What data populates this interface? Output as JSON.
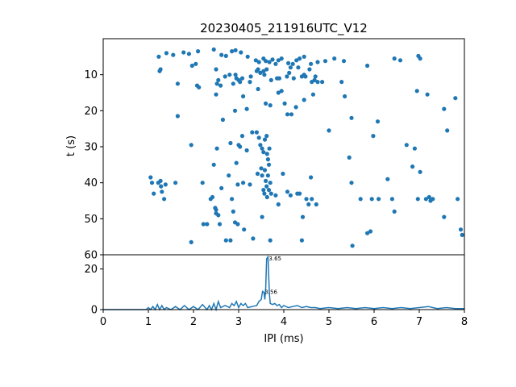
{
  "chart_data": [
    {
      "type": "scatter",
      "title": "20230405_211916UTC_V12",
      "xlabel": "",
      "ylabel": "t (s)",
      "xlim": [
        0,
        8
      ],
      "ylim": [
        60,
        0
      ],
      "y_inverted": true,
      "y_ticks": [
        "10",
        "20",
        "30",
        "40",
        "50",
        "60"
      ],
      "color": "#1f77b4",
      "points": [
        [
          1.23,
          5
        ],
        [
          1.4,
          4
        ],
        [
          1.55,
          4.5
        ],
        [
          1.78,
          3.8
        ],
        [
          1.9,
          4.2
        ],
        [
          2.1,
          3.5
        ],
        [
          2.45,
          3
        ],
        [
          2.62,
          4.5
        ],
        [
          2.72,
          4.8
        ],
        [
          2.85,
          3.5
        ],
        [
          2.93,
          3.2
        ],
        [
          3.05,
          3.8
        ],
        [
          3.2,
          5
        ],
        [
          3.38,
          6
        ],
        [
          3.45,
          6.5
        ],
        [
          3.55,
          5.5
        ],
        [
          3.6,
          6.2
        ],
        [
          3.68,
          6.5
        ],
        [
          3.75,
          5.8
        ],
        [
          3.82,
          7
        ],
        [
          3.88,
          6
        ],
        [
          3.95,
          5.5
        ],
        [
          4.1,
          6.8
        ],
        [
          4.2,
          7
        ],
        [
          4.28,
          6
        ],
        [
          4.35,
          5.5
        ],
        [
          4.45,
          5
        ],
        [
          4.6,
          7
        ],
        [
          4.75,
          6.5
        ],
        [
          4.92,
          6.2
        ],
        [
          5.12,
          5.5
        ],
        [
          5.33,
          6.2
        ],
        [
          5.85,
          7.5
        ],
        [
          6.45,
          5.5
        ],
        [
          6.58,
          6
        ],
        [
          6.98,
          4.8
        ],
        [
          7.02,
          5.5
        ],
        [
          1.25,
          9
        ],
        [
          1.27,
          8.5
        ],
        [
          1.65,
          12.5
        ],
        [
          1.97,
          7.5
        ],
        [
          2.05,
          7
        ],
        [
          2.08,
          13
        ],
        [
          2.12,
          13.5
        ],
        [
          2.5,
          8.5
        ],
        [
          2.52,
          12.5
        ],
        [
          2.55,
          11.5
        ],
        [
          2.6,
          13
        ],
        [
          2.7,
          10.5
        ],
        [
          2.8,
          10
        ],
        [
          2.88,
          12.5
        ],
        [
          2.93,
          10
        ],
        [
          2.95,
          11
        ],
        [
          3.0,
          11.5
        ],
        [
          3.03,
          12
        ],
        [
          3.08,
          11
        ],
        [
          3.25,
          12
        ],
        [
          3.27,
          10.5
        ],
        [
          3.4,
          9
        ],
        [
          3.43,
          8.5
        ],
        [
          3.48,
          9.5
        ],
        [
          3.55,
          9
        ],
        [
          3.57,
          10
        ],
        [
          3.62,
          8.5
        ],
        [
          3.72,
          11.5
        ],
        [
          3.85,
          11
        ],
        [
          3.9,
          11
        ],
        [
          4.07,
          10.5
        ],
        [
          4.12,
          9.5
        ],
        [
          4.15,
          8
        ],
        [
          4.22,
          11
        ],
        [
          4.32,
          8
        ],
        [
          4.4,
          10.5
        ],
        [
          4.45,
          10
        ],
        [
          4.48,
          10.5
        ],
        [
          4.57,
          8.5
        ],
        [
          4.62,
          12
        ],
        [
          4.68,
          11.5
        ],
        [
          4.7,
          10.5
        ],
        [
          4.75,
          12
        ],
        [
          4.85,
          12
        ],
        [
          5.28,
          12
        ],
        [
          1.65,
          21.5
        ],
        [
          2.5,
          15.5
        ],
        [
          2.65,
          22.5
        ],
        [
          2.92,
          20
        ],
        [
          3.1,
          16
        ],
        [
          3.18,
          19.5
        ],
        [
          3.43,
          14
        ],
        [
          3.6,
          18
        ],
        [
          3.7,
          18.5
        ],
        [
          3.88,
          15
        ],
        [
          3.95,
          14.5
        ],
        [
          4.02,
          18
        ],
        [
          4.08,
          21
        ],
        [
          4.17,
          21
        ],
        [
          4.27,
          19
        ],
        [
          4.45,
          17
        ],
        [
          4.65,
          15.5
        ],
        [
          5.35,
          16
        ],
        [
          5.5,
          22
        ],
        [
          6.08,
          23
        ],
        [
          6.95,
          14.5
        ],
        [
          7.18,
          15.5
        ],
        [
          7.55,
          19.5
        ],
        [
          7.8,
          16.5
        ],
        [
          1.95,
          29.5
        ],
        [
          2.45,
          35
        ],
        [
          2.52,
          30.5
        ],
        [
          2.82,
          29
        ],
        [
          3.0,
          29.5
        ],
        [
          3.03,
          30
        ],
        [
          3.08,
          27
        ],
        [
          3.18,
          31
        ],
        [
          3.3,
          26
        ],
        [
          3.4,
          26
        ],
        [
          3.45,
          27.5
        ],
        [
          3.48,
          29.5
        ],
        [
          3.52,
          30.5
        ],
        [
          3.55,
          31.5
        ],
        [
          3.58,
          28
        ],
        [
          3.62,
          27
        ],
        [
          3.63,
          32
        ],
        [
          3.65,
          33.5
        ],
        [
          3.67,
          35
        ],
        [
          3.68,
          30.5
        ],
        [
          4.6,
          38.5
        ],
        [
          5.0,
          25.5
        ],
        [
          5.45,
          33
        ],
        [
          5.98,
          27
        ],
        [
          6.72,
          29.5
        ],
        [
          6.9,
          30.5
        ],
        [
          7.62,
          25.5
        ],
        [
          1.05,
          38.5
        ],
        [
          1.08,
          40
        ],
        [
          1.12,
          43
        ],
        [
          1.22,
          40
        ],
        [
          1.27,
          39.5
        ],
        [
          1.28,
          41
        ],
        [
          1.3,
          42.5
        ],
        [
          1.35,
          44.5
        ],
        [
          1.38,
          40.5
        ],
        [
          1.6,
          40
        ],
        [
          2.2,
          40
        ],
        [
          2.38,
          44.5
        ],
        [
          2.42,
          44
        ],
        [
          2.48,
          47
        ],
        [
          2.5,
          48.5
        ],
        [
          2.55,
          49
        ],
        [
          2.62,
          41.5
        ],
        [
          2.78,
          38
        ],
        [
          2.85,
          44.5
        ],
        [
          2.95,
          34.5
        ],
        [
          2.98,
          40.5
        ],
        [
          3.1,
          40
        ],
        [
          3.25,
          40.5
        ],
        [
          3.42,
          37.5
        ],
        [
          3.5,
          36
        ],
        [
          3.52,
          38
        ],
        [
          3.55,
          42
        ],
        [
          3.57,
          43
        ],
        [
          3.58,
          36.5
        ],
        [
          3.6,
          39.5
        ],
        [
          3.62,
          41
        ],
        [
          3.63,
          44
        ],
        [
          3.65,
          38
        ],
        [
          3.67,
          42
        ],
        [
          3.7,
          40
        ],
        [
          3.72,
          43
        ],
        [
          3.82,
          43.5
        ],
        [
          3.88,
          46
        ],
        [
          3.98,
          37.5
        ],
        [
          4.08,
          42.5
        ],
        [
          4.15,
          43.5
        ],
        [
          4.3,
          43
        ],
        [
          4.35,
          43
        ],
        [
          4.42,
          49.5
        ],
        [
          4.5,
          44.5
        ],
        [
          4.55,
          46
        ],
        [
          4.62,
          44.5
        ],
        [
          4.72,
          46
        ],
        [
          5.5,
          40
        ],
        [
          5.7,
          44.5
        ],
        [
          5.95,
          44.5
        ],
        [
          6.1,
          44.5
        ],
        [
          6.3,
          39
        ],
        [
          6.4,
          44.5
        ],
        [
          6.45,
          48
        ],
        [
          6.85,
          35.5
        ],
        [
          6.97,
          44.5
        ],
        [
          7.02,
          37
        ],
        [
          7.15,
          44.5
        ],
        [
          7.22,
          44
        ],
        [
          7.25,
          45
        ],
        [
          7.3,
          44.5
        ],
        [
          7.85,
          44.5
        ],
        [
          1.95,
          56.5
        ],
        [
          2.22,
          51.5
        ],
        [
          2.3,
          51.5
        ],
        [
          2.5,
          47.5
        ],
        [
          2.58,
          51.5
        ],
        [
          2.72,
          56
        ],
        [
          2.82,
          56
        ],
        [
          2.88,
          48
        ],
        [
          2.92,
          51
        ],
        [
          2.98,
          51.5
        ],
        [
          3.12,
          53
        ],
        [
          3.32,
          55.5
        ],
        [
          3.52,
          49.5
        ],
        [
          3.7,
          56
        ],
        [
          4.4,
          56
        ],
        [
          5.52,
          57.5
        ],
        [
          5.85,
          54
        ],
        [
          5.92,
          53.5
        ],
        [
          7.55,
          49.5
        ],
        [
          7.92,
          53
        ],
        [
          7.95,
          54.5
        ]
      ]
    },
    {
      "type": "line",
      "xlabel": "IPI (ms)",
      "ylabel": "",
      "xlim": [
        0,
        8
      ],
      "ylim": [
        0,
        27
      ],
      "x_ticks": [
        "0",
        "1",
        "2",
        "3",
        "4",
        "5",
        "6",
        "7",
        "8"
      ],
      "y_ticks": [
        "0",
        "20"
      ],
      "color": "#1f77b4",
      "annotations": [
        {
          "x": 3.65,
          "y": 25,
          "text": "3.65"
        },
        {
          "x": 3.56,
          "y": 8.5,
          "text": "3.56"
        }
      ],
      "x": [
        0,
        0.95,
        1.0,
        1.05,
        1.1,
        1.15,
        1.2,
        1.25,
        1.3,
        1.35,
        1.4,
        1.5,
        1.6,
        1.7,
        1.8,
        1.9,
        2.0,
        2.1,
        2.2,
        2.3,
        2.35,
        2.4,
        2.45,
        2.5,
        2.55,
        2.6,
        2.7,
        2.8,
        2.85,
        2.9,
        2.95,
        3.0,
        3.05,
        3.1,
        3.15,
        3.2,
        3.3,
        3.4,
        3.45,
        3.5,
        3.53,
        3.56,
        3.58,
        3.6,
        3.62,
        3.65,
        3.68,
        3.7,
        3.75,
        3.8,
        3.85,
        3.9,
        3.95,
        4.0,
        4.1,
        4.2,
        4.3,
        4.4,
        4.5,
        4.6,
        4.7,
        4.8,
        5.0,
        5.2,
        5.4,
        5.6,
        5.8,
        6.0,
        6.2,
        6.4,
        6.6,
        6.8,
        7.0,
        7.2,
        7.3,
        7.4,
        7.6,
        7.8,
        8.0
      ],
      "y": [
        0,
        0,
        1,
        0,
        1.5,
        0,
        2.5,
        0,
        2,
        0,
        1,
        0,
        1.5,
        0,
        2,
        0,
        1.5,
        0,
        2.5,
        0,
        2,
        0,
        3,
        0,
        4,
        1,
        2,
        1,
        3,
        2,
        4,
        1,
        3,
        2,
        3,
        1,
        1.5,
        2,
        4,
        5,
        9,
        8.5,
        5,
        11,
        25,
        26,
        8,
        3,
        2.5,
        3,
        2,
        2.5,
        1,
        2,
        1,
        1.5,
        2,
        1,
        1.5,
        1,
        1,
        0.5,
        1,
        0.5,
        1,
        0.5,
        1,
        0.5,
        1,
        0.5,
        1,
        0.5,
        1,
        1.5,
        1,
        0.5,
        1,
        0.5,
        0.5
      ]
    }
  ]
}
